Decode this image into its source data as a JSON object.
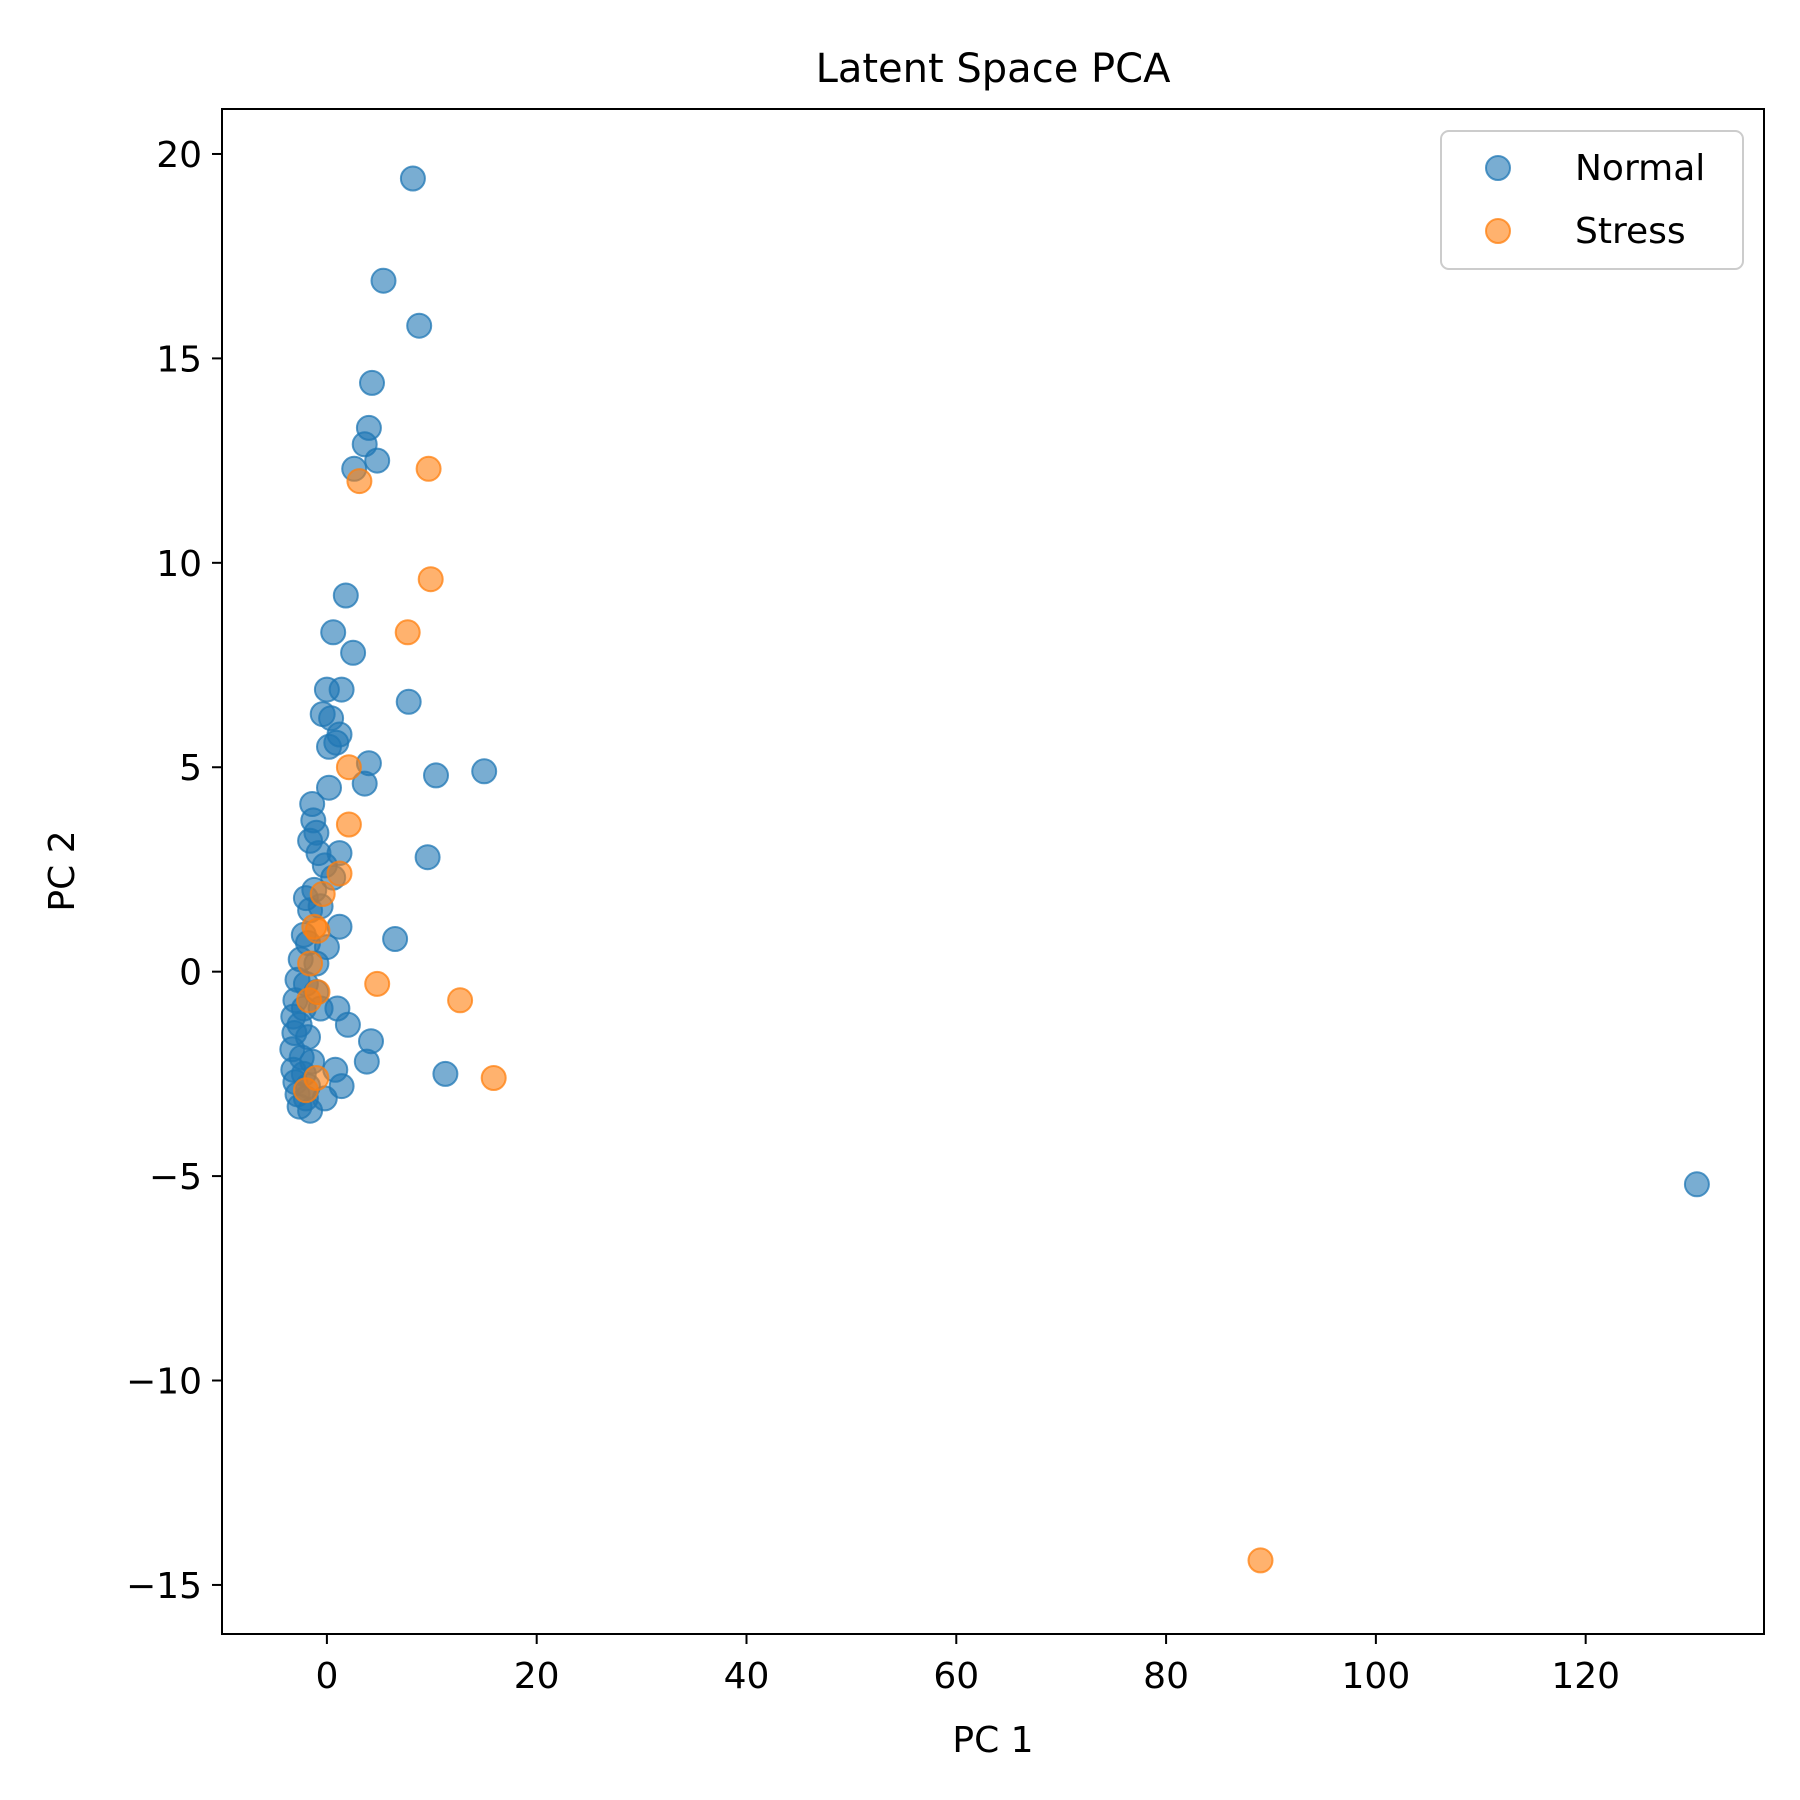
{
  "chart_data": {
    "type": "scatter",
    "title": "Latent Space PCA",
    "xlabel": "PC 1",
    "ylabel": "PC 2",
    "xlim": [
      -10,
      137
    ],
    "ylim": [
      -16.2,
      21.1
    ],
    "xticks": [
      0,
      20,
      40,
      60,
      80,
      100,
      120
    ],
    "yticks": [
      20,
      15,
      10,
      5,
      0,
      -5,
      -10,
      -15
    ],
    "xtick_labels": [
      "0",
      "20",
      "40",
      "60",
      "80",
      "100",
      "120"
    ],
    "ytick_labels": [
      "20",
      "15",
      "10",
      "5",
      "0",
      "−5",
      "−10",
      "−15"
    ],
    "grid": false,
    "legend_position": "top-right",
    "series": [
      {
        "name": "Normal",
        "color": "#1f77b4",
        "points": [
          [
            8.2,
            19.4
          ],
          [
            5.4,
            16.9
          ],
          [
            8.8,
            15.8
          ],
          [
            4.3,
            14.4
          ],
          [
            4.0,
            13.3
          ],
          [
            3.6,
            12.9
          ],
          [
            4.8,
            12.5
          ],
          [
            2.6,
            12.3
          ],
          [
            1.8,
            9.2
          ],
          [
            0.6,
            8.3
          ],
          [
            2.5,
            7.8
          ],
          [
            7.8,
            6.6
          ],
          [
            0.0,
            6.9
          ],
          [
            1.4,
            6.9
          ],
          [
            -0.4,
            6.3
          ],
          [
            0.4,
            6.2
          ],
          [
            1.2,
            5.8
          ],
          [
            0.2,
            5.5
          ],
          [
            0.9,
            5.6
          ],
          [
            4.0,
            5.1
          ],
          [
            3.6,
            4.6
          ],
          [
            10.4,
            4.8
          ],
          [
            15.0,
            4.9
          ],
          [
            0.2,
            4.5
          ],
          [
            -1.4,
            4.1
          ],
          [
            -1.3,
            3.7
          ],
          [
            -1.0,
            3.4
          ],
          [
            -1.6,
            3.2
          ],
          [
            -0.8,
            2.9
          ],
          [
            1.2,
            2.9
          ],
          [
            9.6,
            2.8
          ],
          [
            -0.2,
            2.6
          ],
          [
            0.6,
            2.3
          ],
          [
            -1.2,
            2.0
          ],
          [
            -2.0,
            1.8
          ],
          [
            -0.6,
            1.6
          ],
          [
            -1.6,
            1.5
          ],
          [
            1.2,
            1.1
          ],
          [
            -2.2,
            0.9
          ],
          [
            -1.8,
            0.7
          ],
          [
            0.0,
            0.6
          ],
          [
            -2.5,
            0.3
          ],
          [
            -1.0,
            0.2
          ],
          [
            6.5,
            0.8
          ],
          [
            -2.8,
            -0.2
          ],
          [
            -2.0,
            -0.3
          ],
          [
            -1.0,
            -0.5
          ],
          [
            -3.0,
            -0.7
          ],
          [
            -2.2,
            -0.9
          ],
          [
            -0.6,
            -0.9
          ],
          [
            1.0,
            -0.9
          ],
          [
            -3.2,
            -1.1
          ],
          [
            -2.6,
            -1.3
          ],
          [
            2.0,
            -1.3
          ],
          [
            -3.1,
            -1.5
          ],
          [
            -1.8,
            -1.6
          ],
          [
            4.2,
            -1.7
          ],
          [
            -3.3,
            -1.9
          ],
          [
            -2.4,
            -2.1
          ],
          [
            -1.4,
            -2.2
          ],
          [
            3.8,
            -2.2
          ],
          [
            -3.2,
            -2.4
          ],
          [
            -2.2,
            -2.5
          ],
          [
            0.8,
            -2.4
          ],
          [
            11.3,
            -2.5
          ],
          [
            -3.0,
            -2.7
          ],
          [
            -1.8,
            -2.8
          ],
          [
            1.4,
            -2.8
          ],
          [
            -2.8,
            -3.0
          ],
          [
            -2.0,
            -3.1
          ],
          [
            -0.2,
            -3.1
          ],
          [
            -2.6,
            -3.3
          ],
          [
            -1.6,
            -3.4
          ],
          [
            130.6,
            -5.2
          ]
        ]
      },
      {
        "name": "Stress",
        "color": "#ff7f0e",
        "points": [
          [
            9.7,
            12.3
          ],
          [
            3.1,
            12.0
          ],
          [
            9.9,
            9.6
          ],
          [
            7.7,
            8.3
          ],
          [
            2.1,
            5.0
          ],
          [
            2.1,
            3.6
          ],
          [
            1.2,
            2.4
          ],
          [
            -0.4,
            1.9
          ],
          [
            -1.2,
            1.1
          ],
          [
            -0.9,
            1.0
          ],
          [
            -1.6,
            0.2
          ],
          [
            4.8,
            -0.3
          ],
          [
            12.7,
            -0.7
          ],
          [
            -0.9,
            -0.5
          ],
          [
            -1.7,
            -0.7
          ],
          [
            15.9,
            -2.6
          ],
          [
            -1.0,
            -2.6
          ],
          [
            -2.0,
            -2.9
          ],
          [
            89.0,
            -14.4
          ]
        ]
      }
    ]
  }
}
